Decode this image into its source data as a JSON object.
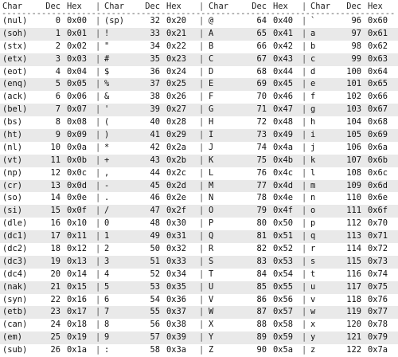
{
  "table": {
    "headers": [
      {
        "char": "Char",
        "dec": "Dec",
        "hex": "Hex"
      },
      {
        "char": "Char",
        "dec": "Dec",
        "hex": "Hex"
      },
      {
        "char": "Char",
        "dec": "Dec",
        "hex": "Hex"
      },
      {
        "char": "Char",
        "dec": "Dec",
        "hex": "Hex"
      }
    ],
    "separator": "|",
    "rule": "--------------------------------------------------------------------------------------------------",
    "rows": [
      [
        [
          "(nul)",
          "0",
          "0x00"
        ],
        [
          "(sp)",
          "32",
          "0x20"
        ],
        [
          "@",
          "64",
          "0x40"
        ],
        [
          "`",
          "96",
          "0x60"
        ]
      ],
      [
        [
          "(soh)",
          "1",
          "0x01"
        ],
        [
          "!",
          "33",
          "0x21"
        ],
        [
          "A",
          "65",
          "0x41"
        ],
        [
          "a",
          "97",
          "0x61"
        ]
      ],
      [
        [
          "(stx)",
          "2",
          "0x02"
        ],
        [
          "\"",
          "34",
          "0x22"
        ],
        [
          "B",
          "66",
          "0x42"
        ],
        [
          "b",
          "98",
          "0x62"
        ]
      ],
      [
        [
          "(etx)",
          "3",
          "0x03"
        ],
        [
          "#",
          "35",
          "0x23"
        ],
        [
          "C",
          "67",
          "0x43"
        ],
        [
          "c",
          "99",
          "0x63"
        ]
      ],
      [
        [
          "(eot)",
          "4",
          "0x04"
        ],
        [
          "$",
          "36",
          "0x24"
        ],
        [
          "D",
          "68",
          "0x44"
        ],
        [
          "d",
          "100",
          "0x64"
        ]
      ],
      [
        [
          "(enq)",
          "5",
          "0x05"
        ],
        [
          "%",
          "37",
          "0x25"
        ],
        [
          "E",
          "69",
          "0x45"
        ],
        [
          "e",
          "101",
          "0x65"
        ]
      ],
      [
        [
          "(ack)",
          "6",
          "0x06"
        ],
        [
          "&",
          "38",
          "0x26"
        ],
        [
          "F",
          "70",
          "0x46"
        ],
        [
          "f",
          "102",
          "0x66"
        ]
      ],
      [
        [
          "(bel)",
          "7",
          "0x07"
        ],
        [
          "'",
          "39",
          "0x27"
        ],
        [
          "G",
          "71",
          "0x47"
        ],
        [
          "g",
          "103",
          "0x67"
        ]
      ],
      [
        [
          "(bs)",
          "8",
          "0x08"
        ],
        [
          "(",
          "40",
          "0x28"
        ],
        [
          "H",
          "72",
          "0x48"
        ],
        [
          "h",
          "104",
          "0x68"
        ]
      ],
      [
        [
          "(ht)",
          "9",
          "0x09"
        ],
        [
          ")",
          "41",
          "0x29"
        ],
        [
          "I",
          "73",
          "0x49"
        ],
        [
          "i",
          "105",
          "0x69"
        ]
      ],
      [
        [
          "(nl)",
          "10",
          "0x0a"
        ],
        [
          "*",
          "42",
          "0x2a"
        ],
        [
          "J",
          "74",
          "0x4a"
        ],
        [
          "j",
          "106",
          "0x6a"
        ]
      ],
      [
        [
          "(vt)",
          "11",
          "0x0b"
        ],
        [
          "+",
          "43",
          "0x2b"
        ],
        [
          "K",
          "75",
          "0x4b"
        ],
        [
          "k",
          "107",
          "0x6b"
        ]
      ],
      [
        [
          "(np)",
          "12",
          "0x0c"
        ],
        [
          ",",
          "44",
          "0x2c"
        ],
        [
          "L",
          "76",
          "0x4c"
        ],
        [
          "l",
          "108",
          "0x6c"
        ]
      ],
      [
        [
          "(cr)",
          "13",
          "0x0d"
        ],
        [
          "-",
          "45",
          "0x2d"
        ],
        [
          "M",
          "77",
          "0x4d"
        ],
        [
          "m",
          "109",
          "0x6d"
        ]
      ],
      [
        [
          "(so)",
          "14",
          "0x0e"
        ],
        [
          ".",
          "46",
          "0x2e"
        ],
        [
          "N",
          "78",
          "0x4e"
        ],
        [
          "n",
          "110",
          "0x6e"
        ]
      ],
      [
        [
          "(si)",
          "15",
          "0x0f"
        ],
        [
          "/",
          "47",
          "0x2f"
        ],
        [
          "O",
          "79",
          "0x4f"
        ],
        [
          "o",
          "111",
          "0x6f"
        ]
      ],
      [
        [
          "(dle)",
          "16",
          "0x10"
        ],
        [
          "0",
          "48",
          "0x30"
        ],
        [
          "P",
          "80",
          "0x50"
        ],
        [
          "p",
          "112",
          "0x70"
        ]
      ],
      [
        [
          "(dc1)",
          "17",
          "0x11"
        ],
        [
          "1",
          "49",
          "0x31"
        ],
        [
          "Q",
          "81",
          "0x51"
        ],
        [
          "q",
          "113",
          "0x71"
        ]
      ],
      [
        [
          "(dc2)",
          "18",
          "0x12"
        ],
        [
          "2",
          "50",
          "0x32"
        ],
        [
          "R",
          "82",
          "0x52"
        ],
        [
          "r",
          "114",
          "0x72"
        ]
      ],
      [
        [
          "(dc3)",
          "19",
          "0x13"
        ],
        [
          "3",
          "51",
          "0x33"
        ],
        [
          "S",
          "83",
          "0x53"
        ],
        [
          "s",
          "115",
          "0x73"
        ]
      ],
      [
        [
          "(dc4)",
          "20",
          "0x14"
        ],
        [
          "4",
          "52",
          "0x34"
        ],
        [
          "T",
          "84",
          "0x54"
        ],
        [
          "t",
          "116",
          "0x74"
        ]
      ],
      [
        [
          "(nak)",
          "21",
          "0x15"
        ],
        [
          "5",
          "53",
          "0x35"
        ],
        [
          "U",
          "85",
          "0x55"
        ],
        [
          "u",
          "117",
          "0x75"
        ]
      ],
      [
        [
          "(syn)",
          "22",
          "0x16"
        ],
        [
          "6",
          "54",
          "0x36"
        ],
        [
          "V",
          "86",
          "0x56"
        ],
        [
          "v",
          "118",
          "0x76"
        ]
      ],
      [
        [
          "(etb)",
          "23",
          "0x17"
        ],
        [
          "7",
          "55",
          "0x37"
        ],
        [
          "W",
          "87",
          "0x57"
        ],
        [
          "w",
          "119",
          "0x77"
        ]
      ],
      [
        [
          "(can)",
          "24",
          "0x18"
        ],
        [
          "8",
          "56",
          "0x38"
        ],
        [
          "X",
          "88",
          "0x58"
        ],
        [
          "x",
          "120",
          "0x78"
        ]
      ],
      [
        [
          "(em)",
          "25",
          "0x19"
        ],
        [
          "9",
          "57",
          "0x39"
        ],
        [
          "Y",
          "89",
          "0x59"
        ],
        [
          "y",
          "121",
          "0x79"
        ]
      ],
      [
        [
          "(sub)",
          "26",
          "0x1a"
        ],
        [
          ":",
          "58",
          "0x3a"
        ],
        [
          "Z",
          "90",
          "0x5a"
        ],
        [
          "z",
          "122",
          "0x7a"
        ]
      ]
    ]
  }
}
